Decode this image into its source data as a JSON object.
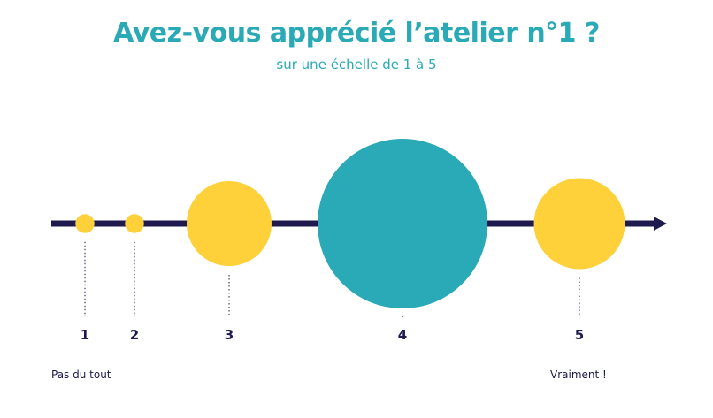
{
  "header": {
    "title": "Avez-vous apprécié l’atelier n°1 ?",
    "subtitle": "sur une échelle de 1 à 5"
  },
  "scale_labels": {
    "low": "Pas du tout",
    "high": "Vraiment !"
  },
  "colors": {
    "title": "#2aa9b6",
    "axis": "#1e1a4d",
    "bubble_default": "#fed03a",
    "bubble_max": "#2aa9b6"
  },
  "chart_data": {
    "type": "bubble",
    "title": "Avez-vous apprécié l’atelier n°1 ?",
    "subtitle": "sur une échelle de 1 à 5",
    "categories": [
      "1",
      "2",
      "3",
      "4",
      "5"
    ],
    "values": [
      1,
      1,
      20,
      80,
      23
    ],
    "xlabel": "",
    "ylabel": ""
  }
}
